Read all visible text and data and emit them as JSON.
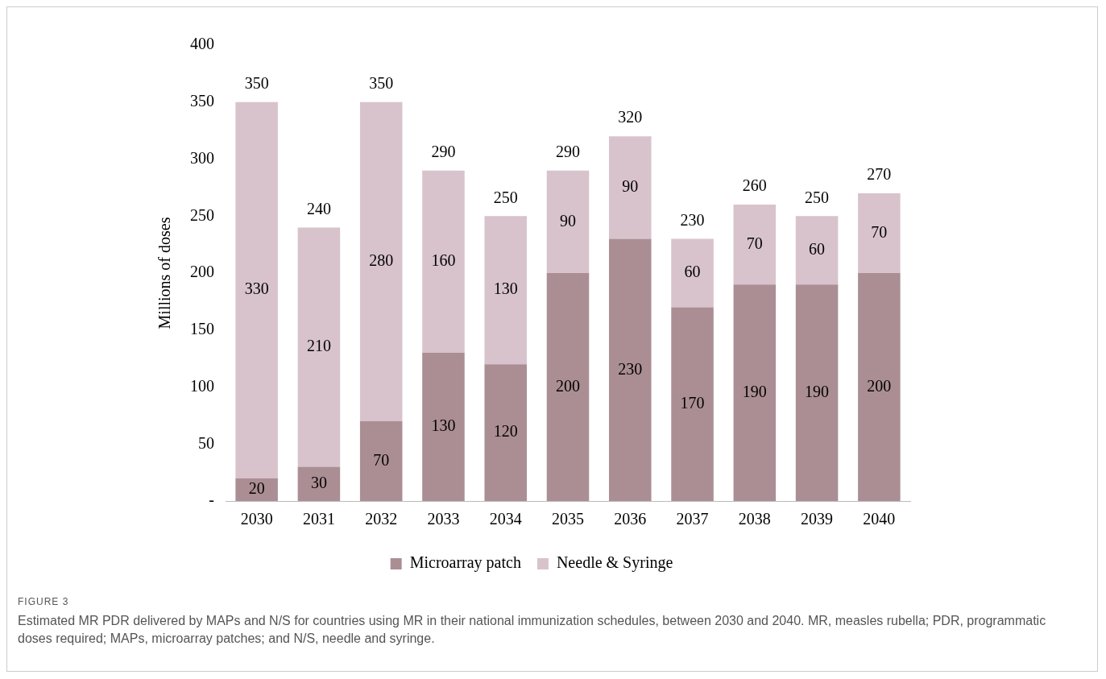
{
  "chart_data": {
    "type": "bar",
    "stacked": true,
    "categories": [
      "2030",
      "2031",
      "2032",
      "2033",
      "2034",
      "2035",
      "2036",
      "2037",
      "2038",
      "2039",
      "2040"
    ],
    "series": [
      {
        "name": "Microarray patch",
        "color": "#ab8e94",
        "values": [
          20,
          30,
          70,
          130,
          120,
          200,
          230,
          170,
          190,
          190,
          200
        ]
      },
      {
        "name": "Needle & Syringe",
        "color": "#d8c3cc",
        "values": [
          330,
          210,
          280,
          160,
          130,
          90,
          90,
          60,
          70,
          60,
          70
        ]
      }
    ],
    "totals": [
      "350",
      "240",
      "350",
      "290",
      "250",
      "290",
      "320",
      "230",
      "260",
      "250",
      "270"
    ],
    "data_labels": true,
    "ylabel": "Millions of doses",
    "ylim": [
      0,
      400
    ],
    "yticks": [
      {
        "value": 0,
        "label": "-"
      },
      50,
      100,
      150,
      200,
      250,
      300,
      350,
      400
    ],
    "grid": false,
    "legend": "bottom",
    "annotations": [
      "FIGURE 3",
      "Estimated MR PDR delivered by MAPs and N/S for countries using MR in their national immunization schedules, between 2030 and 2040. MR, measles rubella; PDR, programmatic doses required; MAPs, microarray patches; and N/S, needle and syringe."
    ]
  }
}
